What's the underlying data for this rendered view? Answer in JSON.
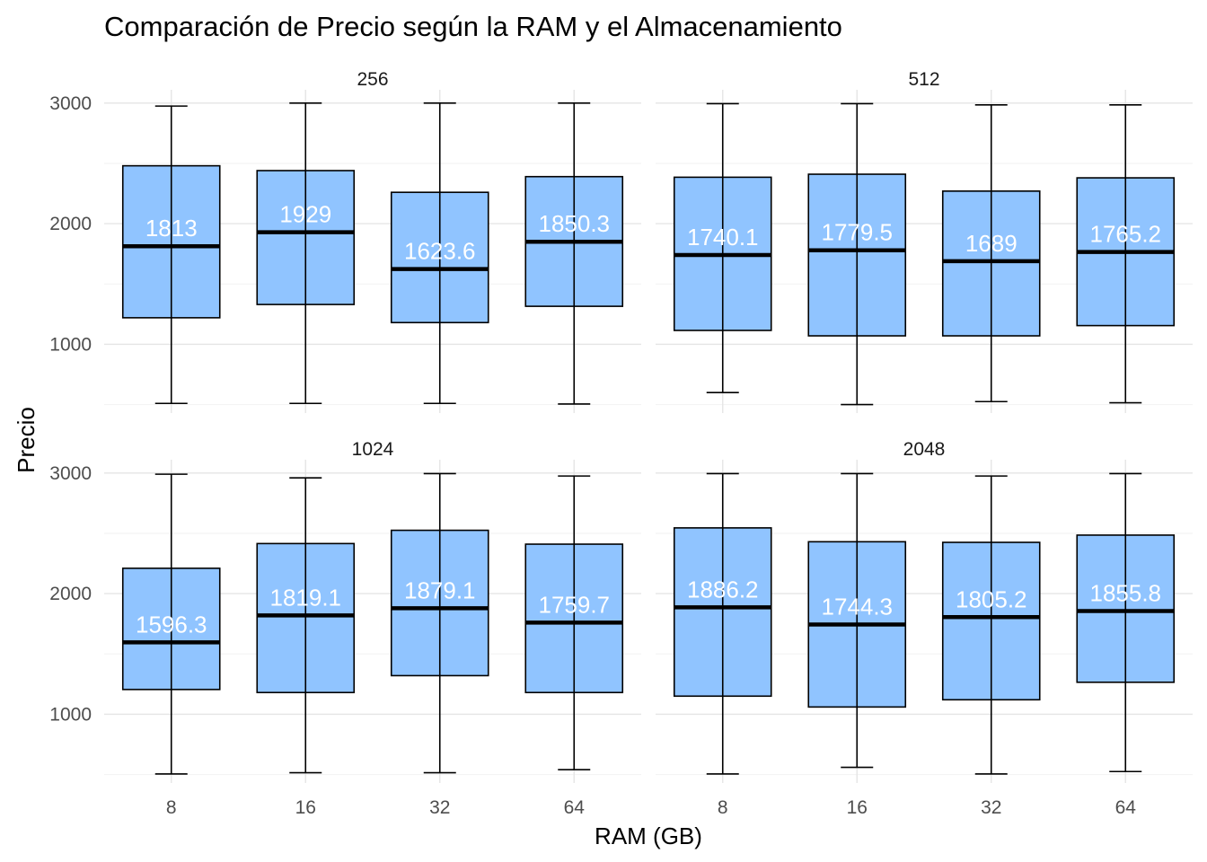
{
  "chart_data": {
    "type": "boxplot",
    "title": "Comparación de Precio según la RAM y el Almacenamiento",
    "xlabel": "RAM (GB)",
    "ylabel": "Precio",
    "categories": [
      "8",
      "16",
      "32",
      "64"
    ],
    "ylim": [
      430,
      3110
    ],
    "yticks": [
      1000,
      2000,
      3000
    ],
    "grid": true,
    "box_fill": "#90C4FF",
    "box_stroke": "#000000",
    "label_color": "#FFFFFF",
    "panels": [
      {
        "facet": "256",
        "boxes": [
          {
            "category": "8",
            "min": 510,
            "q1": 1220,
            "median": 1813,
            "q3": 2480,
            "max": 2975,
            "label": "1813"
          },
          {
            "category": "16",
            "min": 510,
            "q1": 1330,
            "median": 1929,
            "q3": 2440,
            "max": 3000,
            "label": "1929"
          },
          {
            "category": "32",
            "min": 510,
            "q1": 1180,
            "median": 1623.6,
            "q3": 2260,
            "max": 3000,
            "label": "1623.6"
          },
          {
            "category": "64",
            "min": 505,
            "q1": 1315,
            "median": 1850.3,
            "q3": 2390,
            "max": 3000,
            "label": "1850.3"
          }
        ]
      },
      {
        "facet": "512",
        "boxes": [
          {
            "category": "8",
            "min": 600,
            "q1": 1115,
            "median": 1740.1,
            "q3": 2385,
            "max": 2995,
            "label": "1740.1"
          },
          {
            "category": "16",
            "min": 500,
            "q1": 1070,
            "median": 1779.5,
            "q3": 2410,
            "max": 2995,
            "label": "1779.5"
          },
          {
            "category": "32",
            "min": 525,
            "q1": 1070,
            "median": 1689,
            "q3": 2270,
            "max": 2985,
            "label": "1689"
          },
          {
            "category": "64",
            "min": 515,
            "q1": 1155,
            "median": 1765.2,
            "q3": 2380,
            "max": 2985,
            "label": "1765.2"
          }
        ]
      },
      {
        "facet": "1024",
        "boxes": [
          {
            "category": "8",
            "min": 505,
            "q1": 1205,
            "median": 1596.3,
            "q3": 2210,
            "max": 2990,
            "label": "1596.3"
          },
          {
            "category": "16",
            "min": 515,
            "q1": 1180,
            "median": 1819.1,
            "q3": 2415,
            "max": 2960,
            "label": "1819.1"
          },
          {
            "category": "32",
            "min": 515,
            "q1": 1320,
            "median": 1879.1,
            "q3": 2525,
            "max": 2995,
            "label": "1879.1"
          },
          {
            "category": "64",
            "min": 540,
            "q1": 1180,
            "median": 1759.7,
            "q3": 2410,
            "max": 2975,
            "label": "1759.7"
          }
        ]
      },
      {
        "facet": "2048",
        "boxes": [
          {
            "category": "8",
            "min": 505,
            "q1": 1150,
            "median": 1886.2,
            "q3": 2545,
            "max": 2995,
            "label": "1886.2"
          },
          {
            "category": "16",
            "min": 560,
            "q1": 1060,
            "median": 1744.3,
            "q3": 2430,
            "max": 2995,
            "label": "1744.3"
          },
          {
            "category": "32",
            "min": 505,
            "q1": 1120,
            "median": 1805.2,
            "q3": 2425,
            "max": 2975,
            "label": "1805.2"
          },
          {
            "category": "64",
            "min": 525,
            "q1": 1265,
            "median": 1855.8,
            "q3": 2485,
            "max": 2995,
            "label": "1855.8"
          }
        ]
      }
    ]
  }
}
